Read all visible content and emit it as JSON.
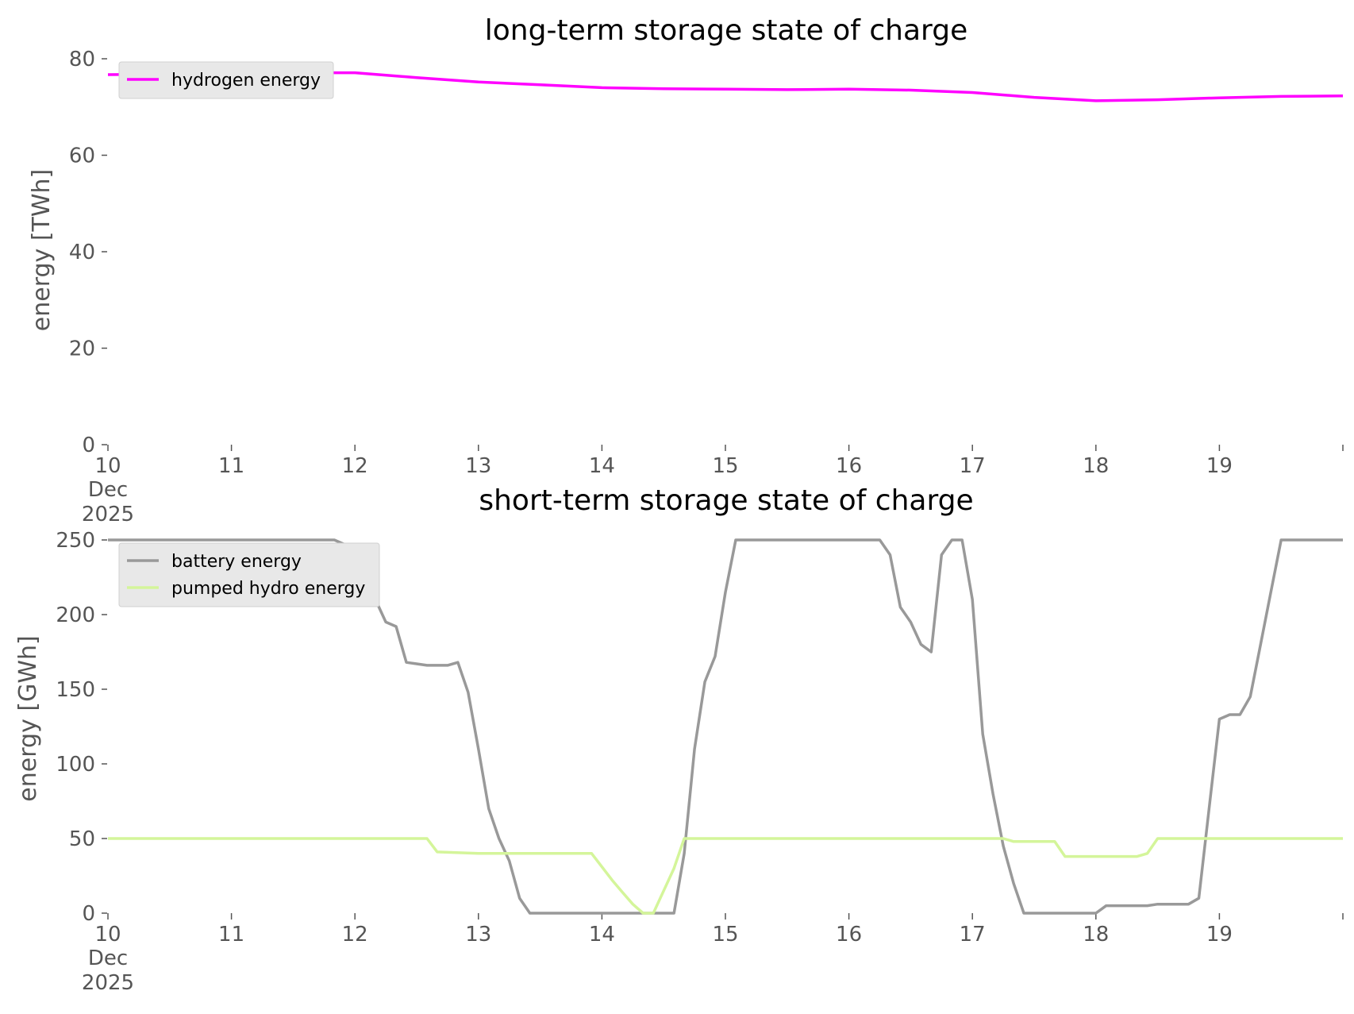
{
  "chart_data": [
    {
      "type": "line",
      "title": "long-term storage state of charge",
      "xlabel": "",
      "ylabel": "energy [TWh]",
      "ylim": [
        0,
        80
      ],
      "yticks": [
        "0",
        "20",
        "40",
        "60",
        "80"
      ],
      "xlim": [
        "2025-12-10 00:00",
        "2025-12-20 00:00"
      ],
      "xticks": [
        {
          "label": "10",
          "sub": [
            "Dec",
            "2025"
          ]
        },
        {
          "label": "11"
        },
        {
          "label": "12"
        },
        {
          "label": "13"
        },
        {
          "label": "14"
        },
        {
          "label": "15"
        },
        {
          "label": "16"
        },
        {
          "label": "17"
        },
        {
          "label": "18"
        },
        {
          "label": "19"
        }
      ],
      "grid": false,
      "legend_position": "top-left",
      "series": [
        {
          "name": "hydrogen energy",
          "color": "#ff00ff",
          "x": [
            "2025-12-10 00:00",
            "2025-12-10 12:00",
            "2025-12-11 00:00",
            "2025-12-11 12:00",
            "2025-12-12 00:00",
            "2025-12-12 12:00",
            "2025-12-13 00:00",
            "2025-12-13 12:00",
            "2025-12-14 00:00",
            "2025-12-14 12:00",
            "2025-12-15 00:00",
            "2025-12-15 12:00",
            "2025-12-16 00:00",
            "2025-12-16 12:00",
            "2025-12-17 00:00",
            "2025-12-17 12:00",
            "2025-12-18 00:00",
            "2025-12-18 12:00",
            "2025-12-19 00:00",
            "2025-12-19 12:00",
            "2025-12-20 00:00"
          ],
          "y": [
            76.7,
            76.8,
            77.0,
            77.1,
            77.1,
            76.1,
            75.2,
            74.6,
            74.0,
            73.8,
            73.7,
            73.6,
            73.7,
            73.5,
            73.0,
            72.0,
            71.3,
            71.5,
            71.9,
            72.2,
            72.3
          ]
        }
      ]
    },
    {
      "type": "line",
      "title": "short-term storage state of charge",
      "xlabel": "",
      "ylabel": "energy [GWh]",
      "ylim": [
        0,
        250
      ],
      "yticks": [
        "0",
        "50",
        "100",
        "150",
        "200",
        "250"
      ],
      "xlim": [
        "2025-12-10 00:00",
        "2025-12-20 00:00"
      ],
      "xticks": [
        {
          "label": "10",
          "sub": [
            "Dec",
            "2025"
          ]
        },
        {
          "label": "11"
        },
        {
          "label": "12"
        },
        {
          "label": "13"
        },
        {
          "label": "14"
        },
        {
          "label": "15"
        },
        {
          "label": "16"
        },
        {
          "label": "17"
        },
        {
          "label": "18"
        },
        {
          "label": "19"
        }
      ],
      "grid": false,
      "legend_position": "top-left",
      "series": [
        {
          "name": "battery energy",
          "color": "#999999",
          "x": [
            "2025-12-10 00:00",
            "2025-12-11 00:00",
            "2025-12-11 20:00",
            "2025-12-11 22:00",
            "2025-12-12 00:00",
            "2025-12-12 02:00",
            "2025-12-12 04:00",
            "2025-12-12 06:00",
            "2025-12-12 08:00",
            "2025-12-12 10:00",
            "2025-12-12 12:00",
            "2025-12-12 14:00",
            "2025-12-12 18:00",
            "2025-12-12 20:00",
            "2025-12-12 22:00",
            "2025-12-13 00:00",
            "2025-12-13 02:00",
            "2025-12-13 04:00",
            "2025-12-13 06:00",
            "2025-12-13 08:00",
            "2025-12-13 10:00",
            "2025-12-13 12:00",
            "2025-12-14 00:00",
            "2025-12-14 08:00",
            "2025-12-14 10:00",
            "2025-12-14 12:00",
            "2025-12-14 14:00",
            "2025-12-14 16:00",
            "2025-12-14 18:00",
            "2025-12-14 20:00",
            "2025-12-14 22:00",
            "2025-12-15 00:00",
            "2025-12-15 02:00",
            "2025-12-15 04:00",
            "2025-12-15 06:00",
            "2025-12-15 08:00",
            "2025-12-15 10:00",
            "2025-12-15 12:00",
            "2025-12-15 14:00",
            "2025-12-16 00:00",
            "2025-12-16 06:00",
            "2025-12-16 08:00",
            "2025-12-16 10:00",
            "2025-12-16 12:00",
            "2025-12-16 14:00",
            "2025-12-16 16:00",
            "2025-12-16 18:00",
            "2025-12-16 20:00",
            "2025-12-16 22:00",
            "2025-12-17 00:00",
            "2025-12-17 02:00",
            "2025-12-17 04:00",
            "2025-12-17 06:00",
            "2025-12-17 08:00",
            "2025-12-17 10:00",
            "2025-12-17 12:00",
            "2025-12-17 14:00",
            "2025-12-17 16:00",
            "2025-12-17 18:00",
            "2025-12-17 20:00",
            "2025-12-17 22:00",
            "2025-12-18 00:00",
            "2025-12-18 02:00",
            "2025-12-18 04:00",
            "2025-12-18 06:00",
            "2025-12-18 08:00",
            "2025-12-18 10:00",
            "2025-12-18 12:00",
            "2025-12-18 14:00",
            "2025-12-18 16:00",
            "2025-12-18 18:00",
            "2025-12-18 20:00",
            "2025-12-18 22:00",
            "2025-12-19 00:00",
            "2025-12-19 02:00",
            "2025-12-19 04:00",
            "2025-12-19 06:00",
            "2025-12-19 08:00",
            "2025-12-19 10:00",
            "2025-12-19 12:00",
            "2025-12-20 00:00"
          ],
          "y": [
            250,
            250,
            250,
            247,
            247,
            245,
            210,
            195,
            192,
            168,
            167,
            166,
            166,
            168,
            148,
            110,
            70,
            50,
            35,
            10,
            0,
            0,
            0,
            0,
            0,
            0,
            0,
            40,
            110,
            155,
            172,
            215,
            250,
            250,
            250,
            250,
            250,
            250,
            250,
            250,
            250,
            240,
            205,
            195,
            180,
            175,
            240,
            250,
            250,
            210,
            120,
            80,
            45,
            20,
            0,
            0,
            0,
            0,
            0,
            0,
            0,
            0,
            5,
            5,
            5,
            5,
            5,
            6,
            6,
            6,
            6,
            10,
            70,
            130,
            133,
            133,
            145,
            180,
            215,
            250,
            250
          ]
        },
        {
          "name": "pumped hydro energy",
          "color": "#d4f59a",
          "x": [
            "2025-12-10 00:00",
            "2025-12-11 00:00",
            "2025-12-12 00:00",
            "2025-12-12 14:00",
            "2025-12-12 16:00",
            "2025-12-13 00:00",
            "2025-12-13 12:00",
            "2025-12-13 22:00",
            "2025-12-14 02:00",
            "2025-12-14 04:00",
            "2025-12-14 06:00",
            "2025-12-14 08:00",
            "2025-12-14 10:00",
            "2025-12-14 12:00",
            "2025-12-14 14:00",
            "2025-12-14 16:00",
            "2025-12-15 00:00",
            "2025-12-16 00:00",
            "2025-12-17 00:00",
            "2025-12-17 06:00",
            "2025-12-17 08:00",
            "2025-12-17 16:00",
            "2025-12-17 18:00",
            "2025-12-18 00:00",
            "2025-12-18 08:00",
            "2025-12-18 10:00",
            "2025-12-18 12:00",
            "2025-12-19 00:00",
            "2025-12-20 00:00"
          ],
          "y": [
            50,
            50,
            50,
            50,
            41,
            40,
            40,
            40,
            22,
            14,
            6,
            0,
            0,
            15,
            30,
            50,
            50,
            50,
            50,
            50,
            48,
            48,
            38,
            38,
            38,
            40,
            50,
            50,
            50
          ]
        }
      ]
    }
  ]
}
